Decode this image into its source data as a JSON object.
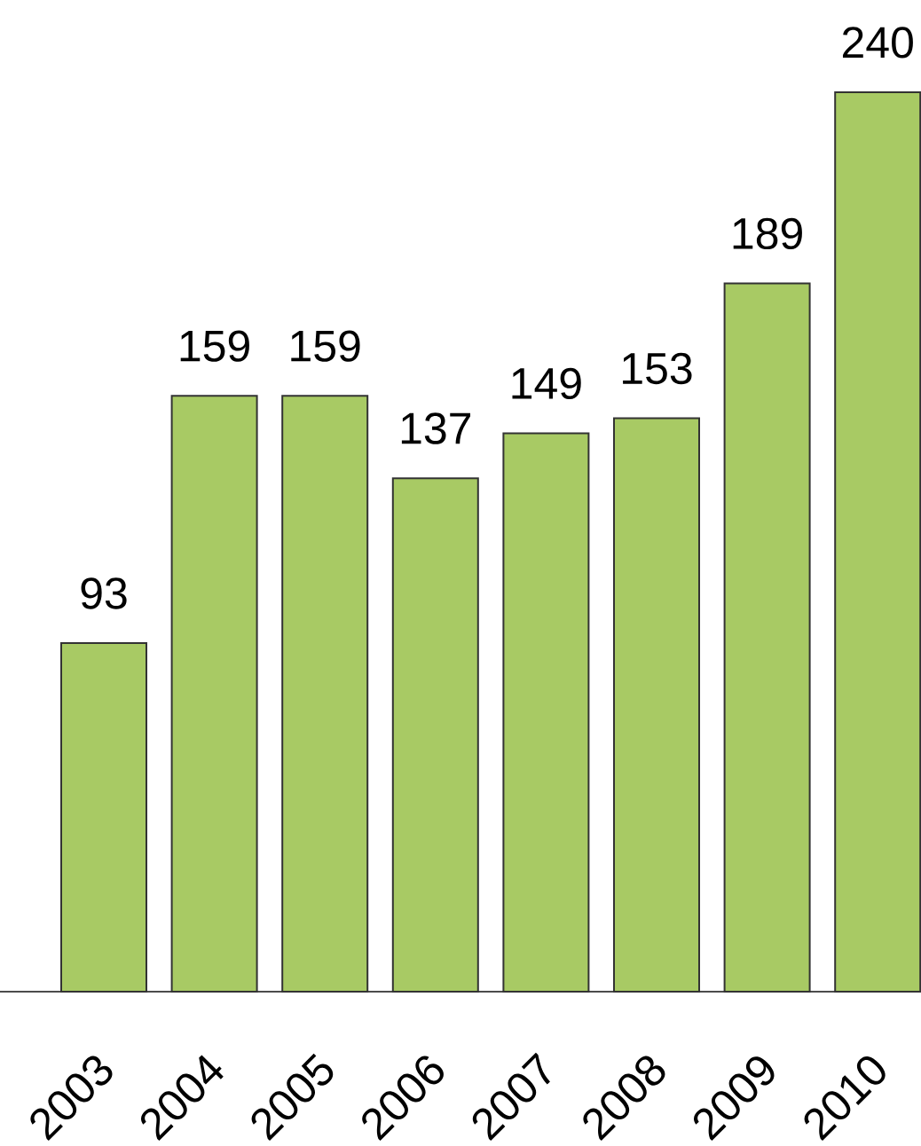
{
  "chart_data": {
    "type": "bar",
    "categories": [
      "2003",
      "2004",
      "2005",
      "2006",
      "2007",
      "2008",
      "2009",
      "2010"
    ],
    "values": [
      93,
      159,
      159,
      137,
      149,
      153,
      189,
      240
    ],
    "color": "#a8ca64",
    "data_labels": true
  }
}
